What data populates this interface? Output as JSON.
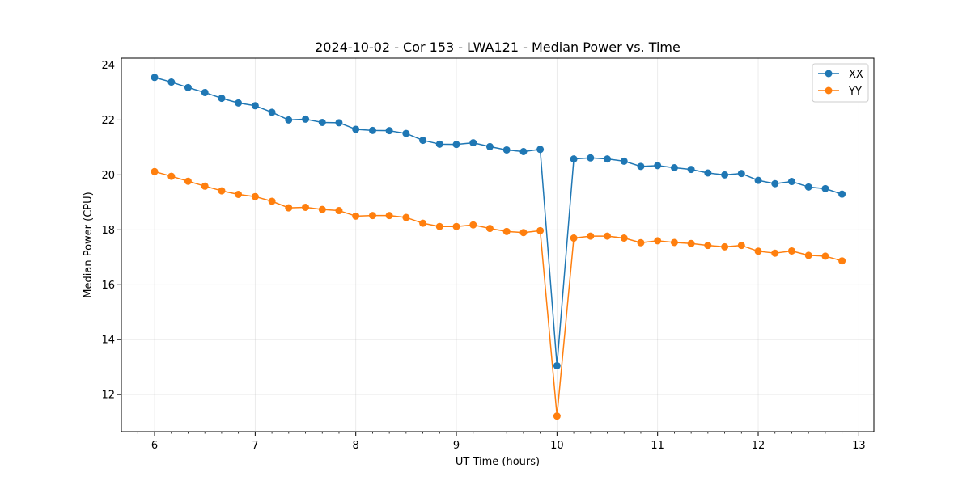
{
  "chart_data": {
    "type": "line",
    "title": "2024-10-02 - Cor 153 - LWA121 - Median Power vs. Time",
    "xlabel": "UT Time (hours)",
    "ylabel": "Median Power (CPU)",
    "xlim": [
      5.67,
      13.15
    ],
    "ylim": [
      10.65,
      24.25
    ],
    "xticks": [
      6,
      7,
      8,
      9,
      10,
      11,
      12,
      13
    ],
    "yticks": [
      12,
      14,
      16,
      18,
      20,
      22,
      24
    ],
    "grid": true,
    "legend_position": "top-right",
    "x": [
      6.0,
      6.167,
      6.333,
      6.5,
      6.667,
      6.833,
      7.0,
      7.167,
      7.333,
      7.5,
      7.667,
      7.833,
      8.0,
      8.167,
      8.333,
      8.5,
      8.667,
      8.833,
      9.0,
      9.167,
      9.333,
      9.5,
      9.667,
      9.833,
      10.0,
      10.167,
      10.333,
      10.5,
      10.667,
      10.833,
      11.0,
      11.167,
      11.333,
      11.5,
      11.667,
      11.833,
      12.0,
      12.167,
      12.333,
      12.5,
      12.667,
      12.833
    ],
    "series": [
      {
        "name": "XX",
        "color": "#1f77b4",
        "values": [
          23.55,
          23.38,
          23.18,
          23.0,
          22.79,
          22.62,
          22.52,
          22.28,
          22.0,
          22.03,
          21.91,
          21.9,
          21.66,
          21.62,
          21.61,
          21.51,
          21.26,
          21.12,
          21.11,
          21.17,
          21.03,
          20.91,
          20.85,
          20.93,
          13.05,
          20.58,
          20.62,
          20.58,
          20.5,
          20.31,
          20.34,
          20.26,
          20.2,
          20.07,
          20.0,
          20.05,
          19.8,
          19.68,
          19.76,
          19.56,
          19.5,
          19.3
        ]
      },
      {
        "name": "YY",
        "color": "#ff7f0e",
        "values": [
          20.12,
          19.95,
          19.77,
          19.59,
          19.42,
          19.29,
          19.21,
          19.04,
          18.8,
          18.82,
          18.74,
          18.7,
          18.5,
          18.52,
          18.52,
          18.45,
          18.24,
          18.12,
          18.12,
          18.18,
          18.05,
          17.94,
          17.9,
          17.97,
          11.22,
          17.7,
          17.77,
          17.77,
          17.7,
          17.53,
          17.6,
          17.54,
          17.5,
          17.43,
          17.38,
          17.43,
          17.22,
          17.15,
          17.23,
          17.07,
          17.04,
          16.87
        ]
      }
    ]
  }
}
